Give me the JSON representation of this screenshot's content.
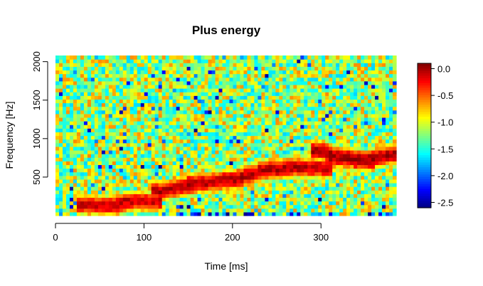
{
  "chart_data": {
    "type": "heatmap",
    "title": "Plus energy",
    "xlabel": "Time [ms]",
    "ylabel": "Frequency [Hz]",
    "xlim": [
      0,
      385
    ],
    "ylim": [
      0,
      2080
    ],
    "x_ticks": [
      0,
      100,
      200,
      300
    ],
    "y_ticks": [
      500,
      1000,
      1500,
      2000
    ],
    "colorbar": {
      "range": [
        -2.6,
        0.1
      ],
      "ticks": [
        0.0,
        -0.5,
        -1.0,
        -1.5,
        -2.0,
        -2.5
      ],
      "tick_labels": [
        "0.0",
        "-0.5",
        "-1.0",
        "-1.5",
        "-2.0",
        "-2.5"
      ],
      "colormap": "jet",
      "colors": [
        "#00007f",
        "#0000ff",
        "#007fff",
        "#00ffff",
        "#7fff7f",
        "#ffff00",
        "#ff7f00",
        "#ff0000",
        "#7f0000"
      ]
    },
    "grid": false,
    "background_level": -1.15,
    "high_energy_ridges": [
      {
        "time_ms": [
          35,
          60,
          90,
          110
        ],
        "frequency_hz": [
          150,
          130,
          190,
          180
        ],
        "level": -0.1
      },
      {
        "time_ms": [
          120,
          160,
          200,
          240,
          270,
          300
        ],
        "frequency_hz": [
          320,
          420,
          470,
          600,
          630,
          620
        ],
        "level": -0.05
      },
      {
        "time_ms": [
          300,
          320,
          350,
          380
        ],
        "frequency_hz": [
          850,
          760,
          720,
          800
        ],
        "level": 0.0
      }
    ],
    "noise_scale": 0.55
  }
}
